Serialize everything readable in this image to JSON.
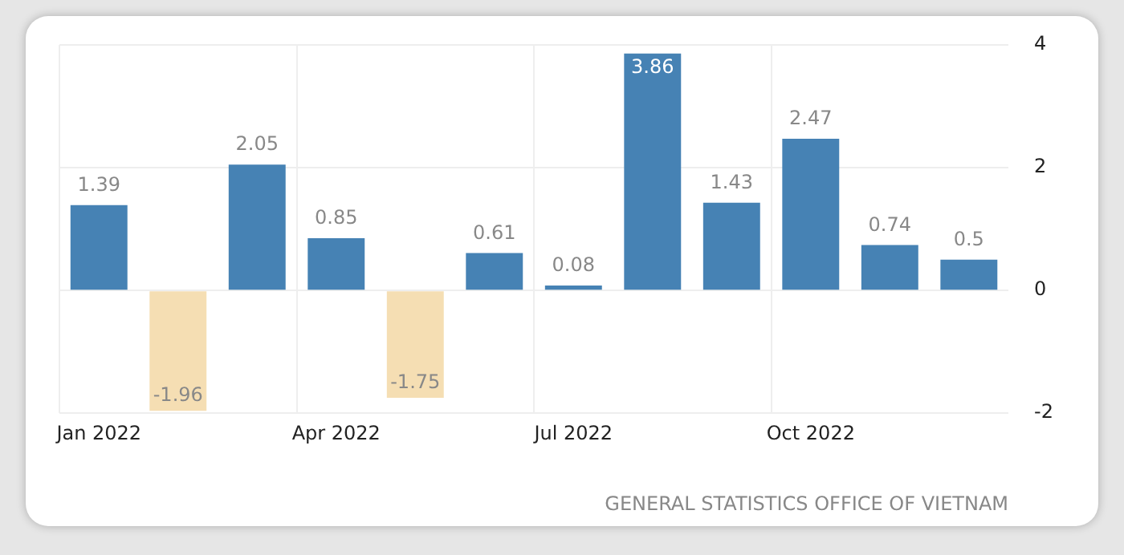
{
  "chart_data": {
    "type": "bar",
    "categories": [
      "Jan 2022",
      null,
      null,
      "Apr 2022",
      null,
      null,
      "Jul 2022",
      null,
      null,
      "Oct 2022",
      null,
      null
    ],
    "values": [
      1.39,
      -1.96,
      2.05,
      0.85,
      -1.75,
      0.61,
      0.08,
      3.86,
      1.43,
      2.47,
      0.74,
      0.5
    ],
    "colors": [
      "#4682b4",
      "#f5deb3",
      "#4682b4",
      "#4682b4",
      "#f5deb3",
      "#4682b4",
      "#4682b4",
      "#4682b4",
      "#4682b4",
      "#4682b4",
      "#4682b4",
      "#4682b4"
    ],
    "ylim": [
      -2,
      4
    ],
    "yticks": [
      -2,
      0,
      2,
      4
    ],
    "grid": true,
    "data_labels": true,
    "annotations": [
      "GENERAL STATISTICS OFFICE OF VIETNAM"
    ]
  }
}
